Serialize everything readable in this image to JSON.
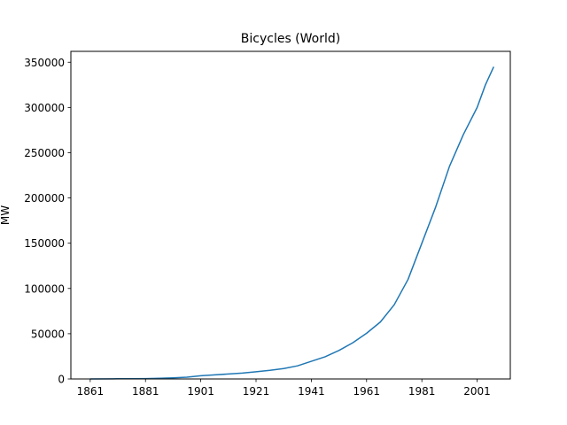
{
  "chart_data": {
    "type": "line",
    "title": "Bicycles (World)",
    "xlabel": "",
    "ylabel": "MW",
    "xlim": [
      1854,
      2013
    ],
    "ylim": [
      0,
      362000
    ],
    "xticks": [
      1861,
      1881,
      1901,
      1921,
      1941,
      1961,
      1981,
      2001
    ],
    "yticks": [
      0,
      50000,
      100000,
      150000,
      200000,
      250000,
      300000,
      350000
    ],
    "grid": false,
    "series": [
      {
        "color": "#1f77b4",
        "x": [
          1861,
          1871,
          1881,
          1886,
          1891,
          1896,
          1901,
          1906,
          1911,
          1916,
          1921,
          1926,
          1931,
          1936,
          1941,
          1946,
          1951,
          1956,
          1961,
          1966,
          1971,
          1976,
          1981,
          1986,
          1991,
          1996,
          2001,
          2004,
          2007
        ],
        "y": [
          0,
          200,
          400,
          700,
          1200,
          2000,
          3500,
          4500,
          5500,
          6500,
          8000,
          9500,
          11500,
          14500,
          19500,
          24500,
          31500,
          40000,
          50500,
          63000,
          82000,
          110000,
          150000,
          190000,
          235000,
          270000,
          300000,
          325000,
          345000
        ]
      }
    ]
  }
}
